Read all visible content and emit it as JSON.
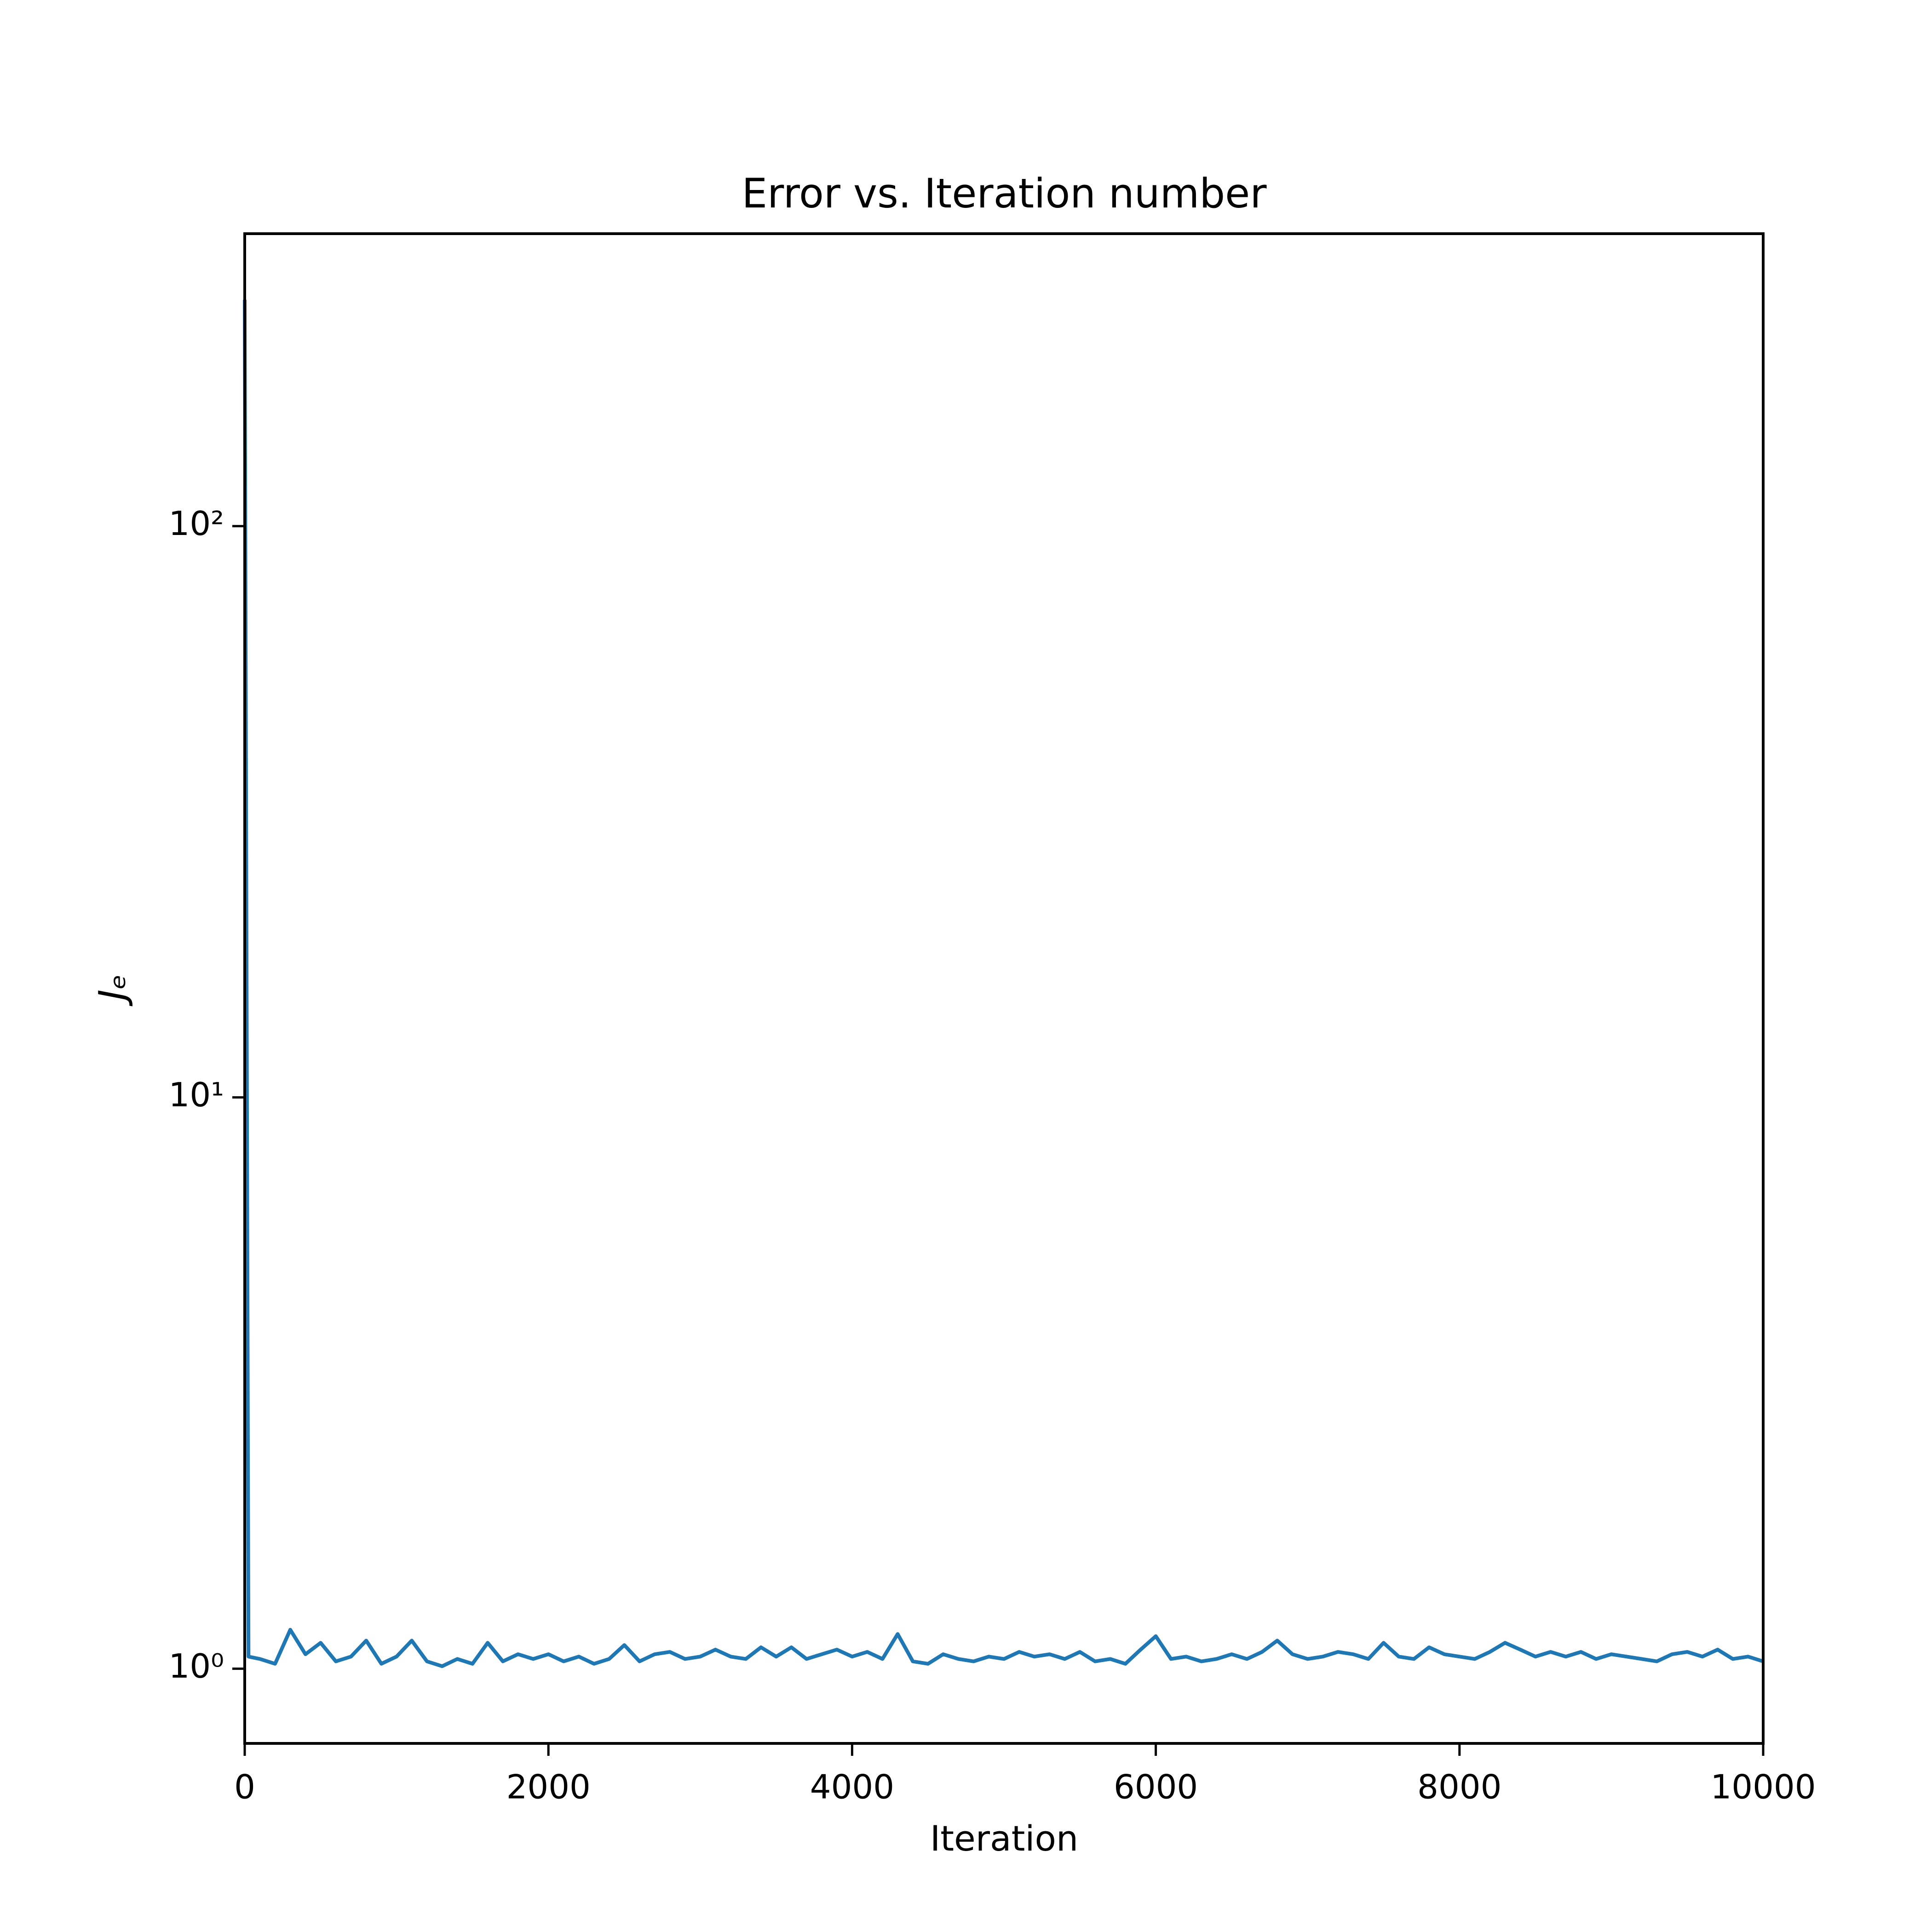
{
  "chart_data": {
    "type": "line",
    "title": "Error vs. Iteration number",
    "xlabel": "Iteration",
    "ylabel": "Jₑ",
    "xlim": [
      0,
      10000
    ],
    "xticks": [
      0,
      2000,
      4000,
      6000,
      8000,
      10000
    ],
    "ylim": [
      0.74,
      325
    ],
    "yscale": "log",
    "yticks": [
      {
        "value": 1,
        "label": "10⁰"
      },
      {
        "value": 10,
        "label": "10¹"
      },
      {
        "value": 100,
        "label": "10²"
      }
    ],
    "grid": false,
    "x": [
      0,
      25,
      100,
      200,
      300,
      400,
      500,
      600,
      700,
      800,
      900,
      1000,
      1100,
      1200,
      1300,
      1400,
      1500,
      1600,
      1700,
      1800,
      1900,
      2000,
      2100,
      2200,
      2300,
      2400,
      2500,
      2600,
      2700,
      2800,
      2900,
      3000,
      3100,
      3200,
      3300,
      3400,
      3500,
      3600,
      3700,
      3800,
      3900,
      4000,
      4100,
      4200,
      4300,
      4400,
      4500,
      4600,
      4700,
      4800,
      4900,
      5000,
      5100,
      5200,
      5300,
      5400,
      5500,
      5600,
      5700,
      5800,
      5900,
      6000,
      6100,
      6200,
      6300,
      6400,
      6500,
      6600,
      6700,
      6800,
      6900,
      7000,
      7100,
      7200,
      7300,
      7400,
      7500,
      7600,
      7700,
      7800,
      7900,
      8000,
      8100,
      8200,
      8300,
      8400,
      8500,
      8600,
      8700,
      8800,
      8900,
      9000,
      9100,
      9200,
      9300,
      9400,
      9500,
      9600,
      9700,
      9800,
      9900,
      10000
    ],
    "series": [
      {
        "color": "#1f77b4",
        "values": [
          249,
          1.05,
          1.04,
          1.02,
          1.17,
          1.06,
          1.11,
          1.03,
          1.05,
          1.12,
          1.02,
          1.05,
          1.12,
          1.03,
          1.01,
          1.04,
          1.02,
          1.11,
          1.03,
          1.06,
          1.04,
          1.06,
          1.03,
          1.05,
          1.02,
          1.04,
          1.1,
          1.03,
          1.06,
          1.07,
          1.04,
          1.05,
          1.08,
          1.05,
          1.04,
          1.09,
          1.05,
          1.09,
          1.04,
          1.06,
          1.08,
          1.05,
          1.07,
          1.04,
          1.15,
          1.03,
          1.02,
          1.06,
          1.04,
          1.03,
          1.05,
          1.04,
          1.07,
          1.05,
          1.06,
          1.04,
          1.07,
          1.03,
          1.04,
          1.02,
          1.08,
          1.14,
          1.04,
          1.05,
          1.03,
          1.04,
          1.06,
          1.04,
          1.07,
          1.12,
          1.06,
          1.04,
          1.05,
          1.07,
          1.06,
          1.04,
          1.11,
          1.05,
          1.04,
          1.09,
          1.06,
          1.05,
          1.04,
          1.07,
          1.11,
          1.08,
          1.05,
          1.07,
          1.05,
          1.07,
          1.04,
          1.06,
          1.05,
          1.04,
          1.03,
          1.06,
          1.07,
          1.05,
          1.08,
          1.04,
          1.05,
          1.03
        ]
      }
    ]
  }
}
